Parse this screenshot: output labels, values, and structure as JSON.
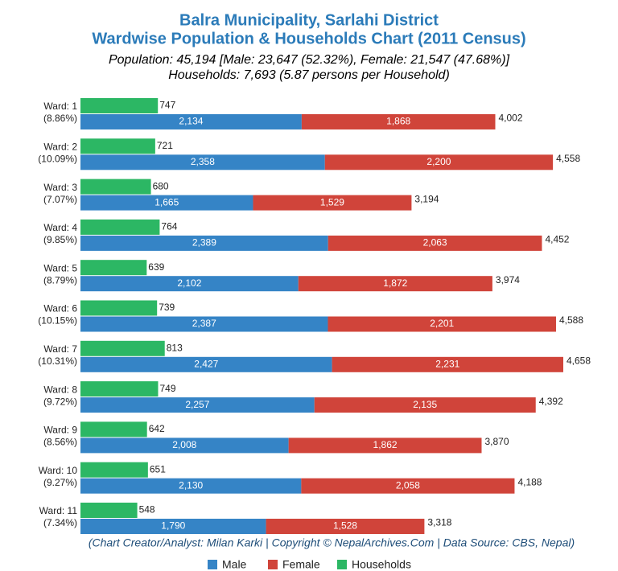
{
  "chart_data": {
    "type": "bar",
    "orientation": "horizontal",
    "title": "Balra Municipality, Sarlahi District",
    "subtitle": "Wardwise Population & Households Chart (2011 Census)",
    "notes": [
      "Population: 45,194 [Male: 23,647 (52.32%), Female: 21,547 (47.68%)]",
      "Households: 7,693 (5.87 persons per Household)"
    ],
    "categories": [
      "Ward: 1",
      "Ward: 2",
      "Ward: 3",
      "Ward: 4",
      "Ward: 5",
      "Ward: 6",
      "Ward: 7",
      "Ward: 8",
      "Ward: 9",
      "Ward: 10",
      "Ward: 11"
    ],
    "category_shares": [
      "(8.86%)",
      "(10.09%)",
      "(7.07%)",
      "(9.85%)",
      "(8.79%)",
      "(10.15%)",
      "(10.31%)",
      "(9.72%)",
      "(8.56%)",
      "(9.27%)",
      "(7.34%)"
    ],
    "series": [
      {
        "name": "Male",
        "color": "#3584c6",
        "stack": "population",
        "values": [
          2134,
          2358,
          1665,
          2389,
          2102,
          2387,
          2427,
          2257,
          2008,
          2130,
          1790
        ],
        "value_labels": [
          "2,134",
          "2,358",
          "1,665",
          "2,389",
          "2,102",
          "2,387",
          "2,427",
          "2,257",
          "2,008",
          "2,130",
          "1,790"
        ]
      },
      {
        "name": "Female",
        "color": "#d0443a",
        "stack": "population",
        "values": [
          1868,
          2200,
          1529,
          2063,
          1872,
          2201,
          2231,
          2135,
          1862,
          2058,
          1528
        ],
        "value_labels": [
          "1,868",
          "2,200",
          "1,529",
          "2,063",
          "1,872",
          "2,201",
          "2,231",
          "2,135",
          "1,862",
          "2,058",
          "1,528"
        ]
      },
      {
        "name": "Households",
        "color": "#2cb764",
        "stack": "households",
        "values": [
          747,
          721,
          680,
          764,
          639,
          739,
          813,
          749,
          642,
          651,
          548
        ]
      }
    ],
    "totals": {
      "values": [
        4002,
        4558,
        3194,
        4452,
        3974,
        4588,
        4658,
        4392,
        3870,
        4188,
        3318
      ],
      "value_labels": [
        "4,002",
        "4,558",
        "3,194",
        "4,452",
        "3,974",
        "4,588",
        "4,658",
        "4,392",
        "3,870",
        "4,188",
        "3,318"
      ]
    },
    "source": "(Chart Creator/Analyst: Milan Karki | Copyright © NepalArchives.Com | Data Source: CBS, Nepal)"
  }
}
